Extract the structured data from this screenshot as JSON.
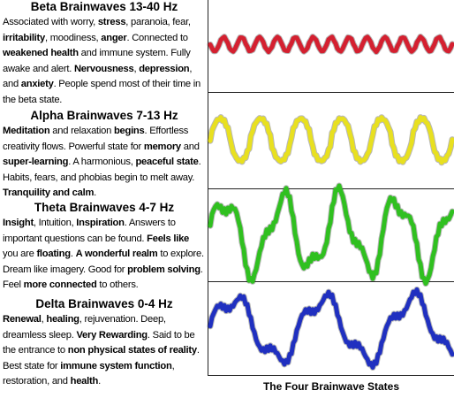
{
  "sections": [
    {
      "title": "Beta Brainwaves 13-40 Hz",
      "wave_color": "#d42030",
      "segments": [
        {
          "text": "Associated with worry, ",
          "bold": false
        },
        {
          "text": "stress",
          "bold": true
        },
        {
          "text": ", paranoia, fear, ",
          "bold": false
        },
        {
          "text": "irritability",
          "bold": true
        },
        {
          "text": ", moodiness, ",
          "bold": false
        },
        {
          "text": "anger",
          "bold": true
        },
        {
          "text": ". Connected to ",
          "bold": false
        },
        {
          "text": "weakened health",
          "bold": true
        },
        {
          "text": " and immune system. Fully awake and alert. ",
          "bold": false
        },
        {
          "text": "Nervousness",
          "bold": true
        },
        {
          "text": ", ",
          "bold": false
        },
        {
          "text": "depression",
          "bold": true
        },
        {
          "text": ", and ",
          "bold": false
        },
        {
          "text": "anxiety",
          "bold": true
        },
        {
          "text": ". People spend most of their time in the beta state.",
          "bold": false
        }
      ]
    },
    {
      "title": "Alpha Brainwaves 7-13 Hz",
      "wave_color": "#e8e020",
      "segments": [
        {
          "text": "Meditation",
          "bold": true
        },
        {
          "text": " and relaxation ",
          "bold": false
        },
        {
          "text": "begins",
          "bold": true
        },
        {
          "text": ". Effortless creativity flows. Powerful state for ",
          "bold": false
        },
        {
          "text": "memory",
          "bold": true
        },
        {
          "text": " and ",
          "bold": false
        },
        {
          "text": "super-learning",
          "bold": true
        },
        {
          "text": ". A harmonious, ",
          "bold": false
        },
        {
          "text": "peaceful state",
          "bold": true
        },
        {
          "text": ". Habits, fears, and phobias begin to melt away. ",
          "bold": false
        },
        {
          "text": "Tranquility and calm",
          "bold": true
        },
        {
          "text": ".",
          "bold": false
        }
      ]
    },
    {
      "title": "Theta Brainwaves 4-7 Hz",
      "wave_color": "#30c020",
      "segments": [
        {
          "text": "Insight",
          "bold": true
        },
        {
          "text": ", Intuition, ",
          "bold": false
        },
        {
          "text": "Inspiration",
          "bold": true
        },
        {
          "text": ". Answers to important questions can be found. ",
          "bold": false
        },
        {
          "text": "Feels like",
          "bold": true
        },
        {
          "text": " you are ",
          "bold": false
        },
        {
          "text": "floating",
          "bold": true
        },
        {
          "text": ".  ",
          "bold": false
        },
        {
          "text": "A wonderful realm",
          "bold": true
        },
        {
          "text": " to explore. Dream like imagery. Good for ",
          "bold": false
        },
        {
          "text": "problem solving",
          "bold": true
        },
        {
          "text": ". Feel ",
          "bold": false
        },
        {
          "text": "more connected",
          "bold": true
        },
        {
          "text": " to others.",
          "bold": false
        }
      ]
    },
    {
      "title": "Delta Brainwaves 0-4 Hz",
      "wave_color": "#2030c0",
      "segments": [
        {
          "text": "Renewal",
          "bold": true
        },
        {
          "text": ", ",
          "bold": false
        },
        {
          "text": "healing",
          "bold": true
        },
        {
          "text": ", rejuvenation. Deep, dreamless sleep. ",
          "bold": false
        },
        {
          "text": "Very Rewarding",
          "bold": true
        },
        {
          "text": ". Said to be the entrance to ",
          "bold": false
        },
        {
          "text": "non physical states of reality",
          "bold": true
        },
        {
          "text": ". Best state for ",
          "bold": false
        },
        {
          "text": "immune system function",
          "bold": true
        },
        {
          "text": ", restoration, and ",
          "bold": false
        },
        {
          "text": "health",
          "bold": true
        },
        {
          "text": ".",
          "bold": false
        }
      ]
    }
  ],
  "caption": "The Four Brainwave States"
}
